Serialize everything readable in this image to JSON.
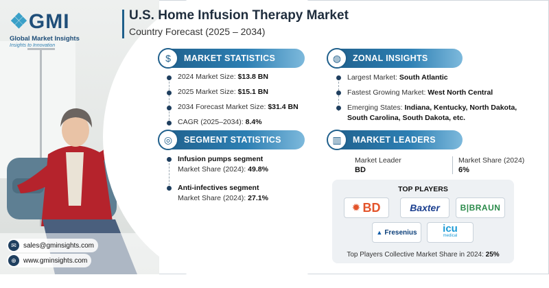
{
  "brand": {
    "mark": "GMI",
    "name": "Global Market Insights",
    "tagline": "Insights to Innovation"
  },
  "header": {
    "title": "U.S. Home Infusion Therapy Market",
    "subtitle": "Country Forecast (2025 – 2034)"
  },
  "market_statistics": {
    "heading": "MARKET STATISTICS",
    "icon": "globe-dollar-icon",
    "items": [
      {
        "label": "2024 Market Size: ",
        "value": "$13.8 BN"
      },
      {
        "label": "2025 Market Size: ",
        "value": "$15.1 BN"
      },
      {
        "label": "2034 Forecast Market Size: ",
        "value": "$31.4 BN"
      },
      {
        "label": "CAGR (2025–2034): ",
        "value": "8.4%"
      }
    ]
  },
  "zonal_insights": {
    "heading": "ZONAL INSIGHTS",
    "icon": "globe-icon",
    "items": [
      {
        "label": "Largest Market: ",
        "value": "South Atlantic"
      },
      {
        "label": "Fastest Growing Market: ",
        "value": "West North Central"
      },
      {
        "label": "Emerging States: ",
        "value": "Indiana, Kentucky, North Dakota, South Carolina, South Dakota, etc."
      }
    ]
  },
  "segment_statistics": {
    "heading": "SEGMENT STATISTICS",
    "icon": "target-icon",
    "items": [
      {
        "name": "Infusion pumps segment",
        "share_label": "Market Share (2024): ",
        "share_value": "49.8%"
      },
      {
        "name": "Anti-infectives segment",
        "share_label": "Market Share (2024): ",
        "share_value": "27.1%"
      }
    ]
  },
  "market_leaders": {
    "heading": "MARKET LEADERS",
    "icon": "buildings-icon",
    "leader_label": "Market Leader",
    "leader_value": "BD",
    "share_label": "Market Share (2024)",
    "share_value": "6%"
  },
  "top_players": {
    "heading": "TOP PLAYERS",
    "logos": [
      "BD",
      "Baxter",
      "B|BRAUN",
      "Fresenius",
      "icu"
    ],
    "logo_sub": "medical",
    "footer_label": "Top Players Collective Market Share in 2024: ",
    "footer_value": "25%"
  },
  "contact": {
    "email": "sales@gminsights.com",
    "website": "www.gminsights.com"
  },
  "colors": {
    "primary": "#1f5f8b",
    "accent": "#2d7fb3",
    "dark": "#1f2d3d"
  }
}
